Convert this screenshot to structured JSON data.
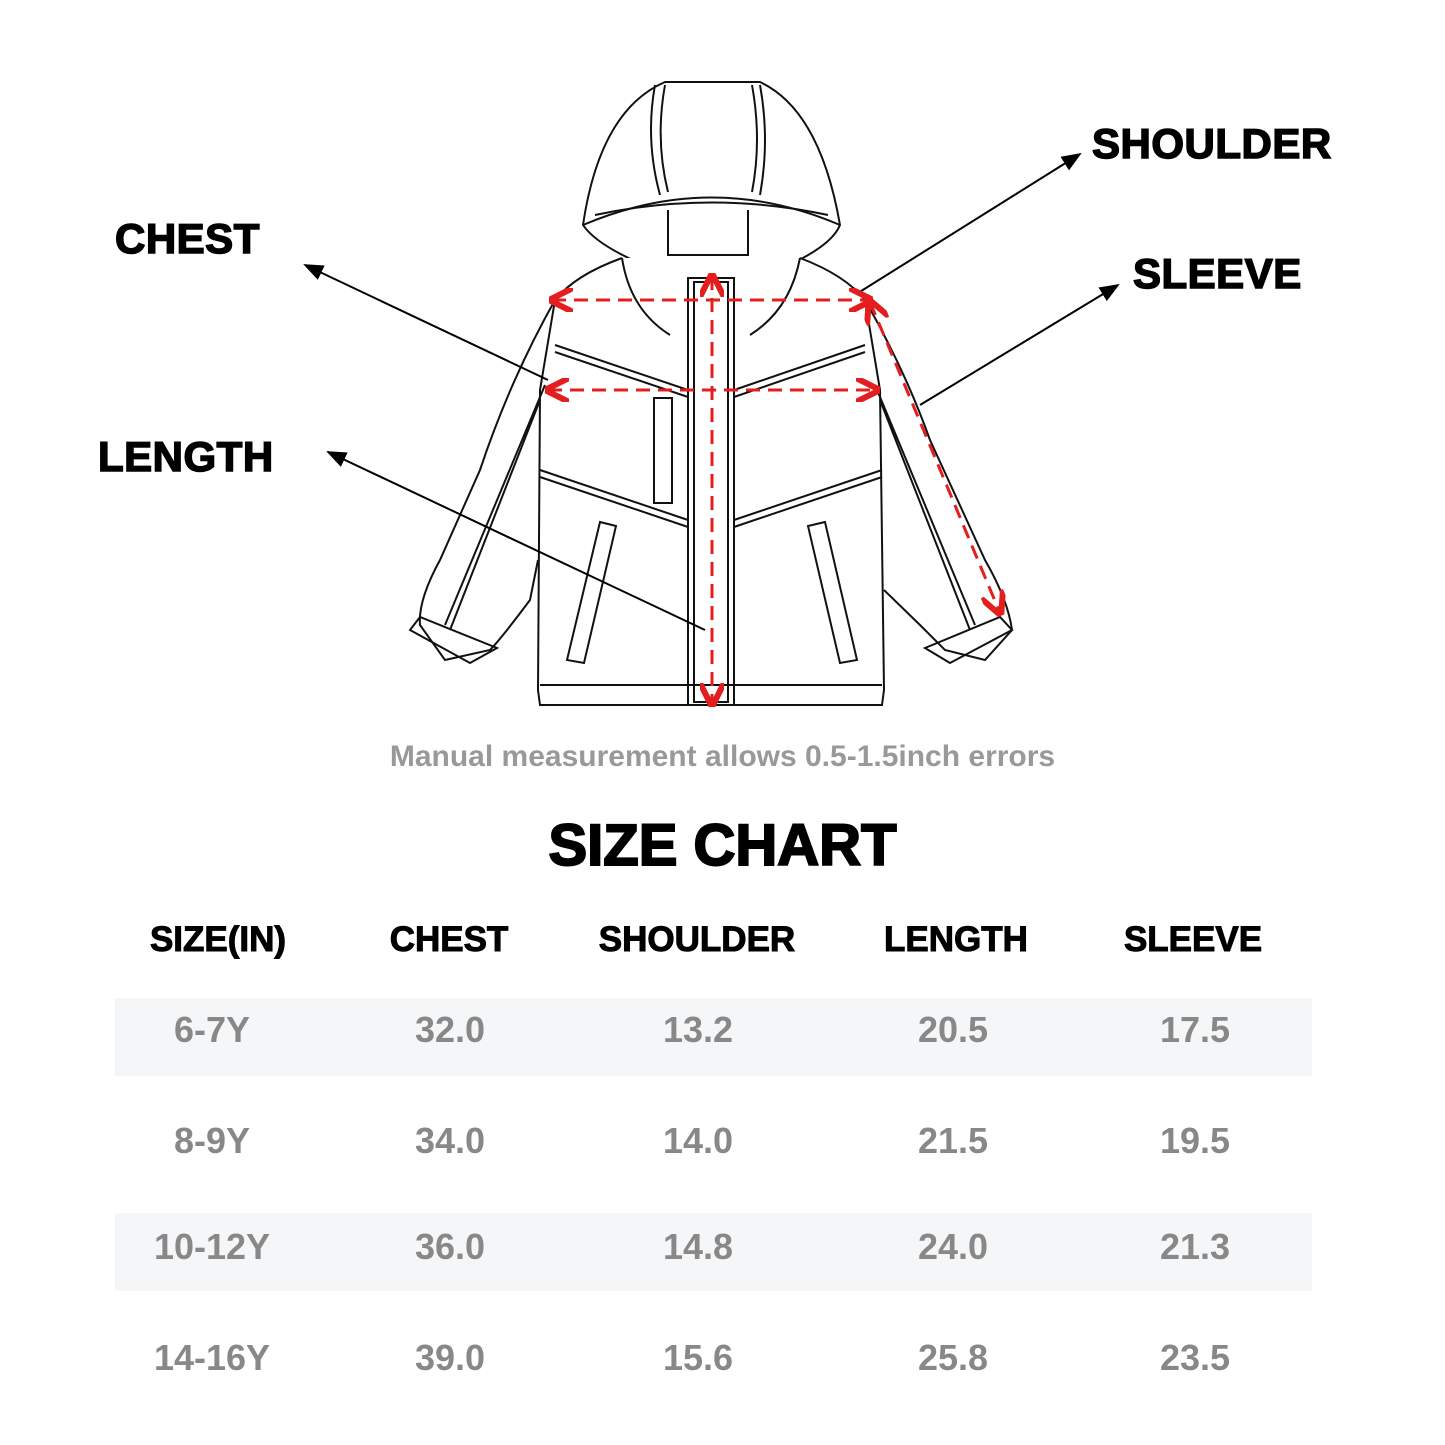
{
  "diagram": {
    "labels": {
      "shoulder": "SHOULDER",
      "chest": "CHEST",
      "sleeve": "SLEEVE",
      "length": "LENGTH"
    },
    "measure_color": "#e41e1e"
  },
  "note": "Manual measurement allows 0.5-1.5inch errors",
  "title": "SIZE CHART",
  "table": {
    "headers": [
      "SIZE(IN)",
      "CHEST",
      "SHOULDER",
      "LENGTH",
      "SLEEVE"
    ],
    "rows": [
      [
        "6-7Y",
        "32.0",
        "13.2",
        "20.5",
        "17.5"
      ],
      [
        "8-9Y",
        "34.0",
        "14.0",
        "21.5",
        "19.5"
      ],
      [
        "10-12Y",
        "36.0",
        "14.8",
        "24.0",
        "21.3"
      ],
      [
        "14-16Y",
        "39.0",
        "15.6",
        "25.8",
        "23.5"
      ]
    ],
    "stripe_color": "#f5f6f8"
  }
}
